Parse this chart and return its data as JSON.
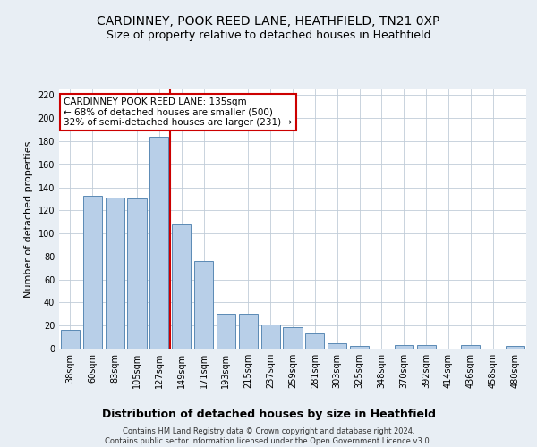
{
  "title": "CARDINNEY, POOK REED LANE, HEATHFIELD, TN21 0XP",
  "subtitle": "Size of property relative to detached houses in Heathfield",
  "xlabel": "Distribution of detached houses by size in Heathfield",
  "ylabel": "Number of detached properties",
  "categories": [
    "38sqm",
    "60sqm",
    "83sqm",
    "105sqm",
    "127sqm",
    "149sqm",
    "171sqm",
    "193sqm",
    "215sqm",
    "237sqm",
    "259sqm",
    "281sqm",
    "303sqm",
    "325sqm",
    "348sqm",
    "370sqm",
    "392sqm",
    "414sqm",
    "436sqm",
    "458sqm",
    "480sqm"
  ],
  "values": [
    16,
    133,
    131,
    130,
    184,
    108,
    76,
    30,
    30,
    21,
    19,
    13,
    5,
    2,
    0,
    3,
    3,
    0,
    3,
    0,
    2
  ],
  "bar_color": "#b8cfe8",
  "bar_edge_color": "#5a8ab5",
  "vline_x": 4.5,
  "vline_color": "#cc0000",
  "annotation_text": "CARDINNEY POOK REED LANE: 135sqm\n← 68% of detached houses are smaller (500)\n32% of semi-detached houses are larger (231) →",
  "annotation_box_color": "#ffffff",
  "annotation_box_edge_color": "#cc0000",
  "ylim": [
    0,
    225
  ],
  "yticks": [
    0,
    20,
    40,
    60,
    80,
    100,
    120,
    140,
    160,
    180,
    200,
    220
  ],
  "footer": "Contains HM Land Registry data © Crown copyright and database right 2024.\nContains public sector information licensed under the Open Government Licence v3.0.",
  "background_color": "#e8eef4",
  "plot_background_color": "#ffffff",
  "title_fontsize": 10,
  "subtitle_fontsize": 9,
  "xlabel_fontsize": 9,
  "ylabel_fontsize": 8,
  "tick_fontsize": 7,
  "footer_fontsize": 6,
  "annotation_fontsize": 7.5
}
